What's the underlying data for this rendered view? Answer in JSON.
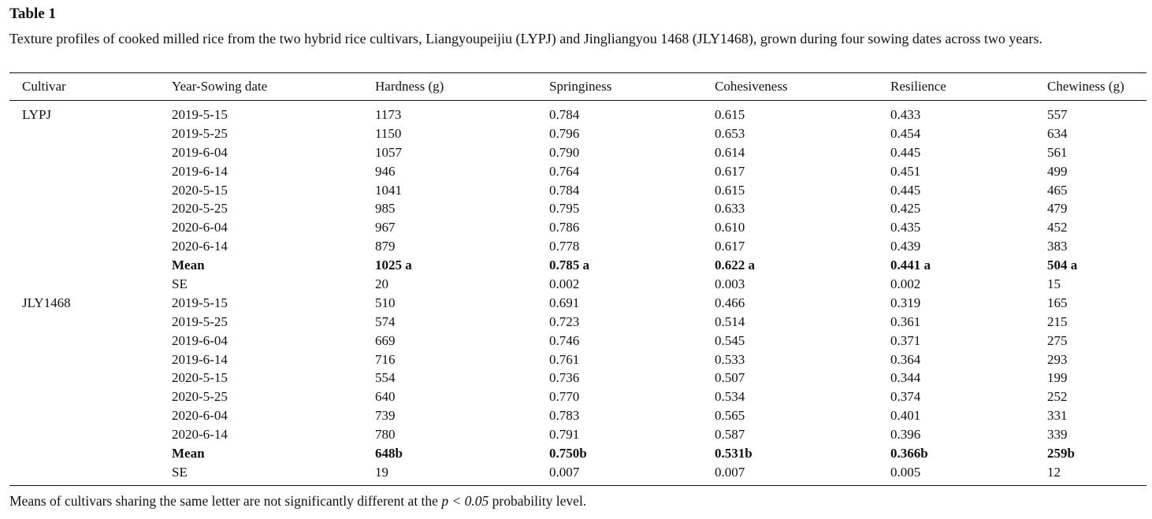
{
  "title": "Table 1",
  "caption": "Texture profiles of cooked milled rice from the two hybrid rice cultivars, Liangyoupeijiu (LYPJ) and Jingliangyou 1468 (JLY1468), grown during four sowing dates across two years.",
  "columns": [
    "Cultivar",
    "Year-Sowing date",
    "Hardness (g)",
    "Springiness",
    "Cohesiveness",
    "Resilience",
    "Chewiness (g)"
  ],
  "rows": [
    [
      "LYPJ",
      "2019-5-15",
      "1173",
      "0.784",
      "0.615",
      "0.433",
      "557"
    ],
    [
      "",
      "2019-5-25",
      "1150",
      "0.796",
      "0.653",
      "0.454",
      "634"
    ],
    [
      "",
      "2019-6-04",
      "1057",
      "0.790",
      "0.614",
      "0.445",
      "561"
    ],
    [
      "",
      "2019-6-14",
      "946",
      "0.764",
      "0.617",
      "0.451",
      "499"
    ],
    [
      "",
      "2020-5-15",
      "1041",
      "0.784",
      "0.615",
      "0.445",
      "465"
    ],
    [
      "",
      "2020-5-25",
      "985",
      "0.795",
      "0.633",
      "0.425",
      "479"
    ],
    [
      "",
      "2020-6-04",
      "967",
      "0.786",
      "0.610",
      "0.435",
      "452"
    ],
    [
      "",
      "2020-6-14",
      "879",
      "0.778",
      "0.617",
      "0.439",
      "383"
    ],
    [
      "",
      "Mean",
      "1025 a",
      "0.785 a",
      "0.622 a",
      "0.441 a",
      "504 a"
    ],
    [
      "",
      "SE",
      "20",
      "0.002",
      "0.003",
      "0.002",
      "15"
    ],
    [
      "JLY1468",
      "2019-5-15",
      "510",
      "0.691",
      "0.466",
      "0.319",
      "165"
    ],
    [
      "",
      "2019-5-25",
      "574",
      "0.723",
      "0.514",
      "0.361",
      "215"
    ],
    [
      "",
      "2019-6-04",
      "669",
      "0.746",
      "0.545",
      "0.371",
      "275"
    ],
    [
      "",
      "2019-6-14",
      "716",
      "0.761",
      "0.533",
      "0.364",
      "293"
    ],
    [
      "",
      "2020-5-15",
      "554",
      "0.736",
      "0.507",
      "0.344",
      "199"
    ],
    [
      "",
      "2020-5-25",
      "640",
      "0.770",
      "0.534",
      "0.374",
      "252"
    ],
    [
      "",
      "2020-6-04",
      "739",
      "0.783",
      "0.565",
      "0.401",
      "331"
    ],
    [
      "",
      "2020-6-14",
      "780",
      "0.791",
      "0.587",
      "0.396",
      "339"
    ],
    [
      "",
      "Mean",
      "648b",
      "0.750b",
      "0.531b",
      "0.366b",
      "259b"
    ],
    [
      "",
      "SE",
      "19",
      "0.007",
      "0.007",
      "0.005",
      "12"
    ]
  ],
  "footnote": {
    "before": "Means of cultivars sharing the same letter are not significantly different at the ",
    "italic": "p < 0.05",
    "after": " probability level."
  }
}
